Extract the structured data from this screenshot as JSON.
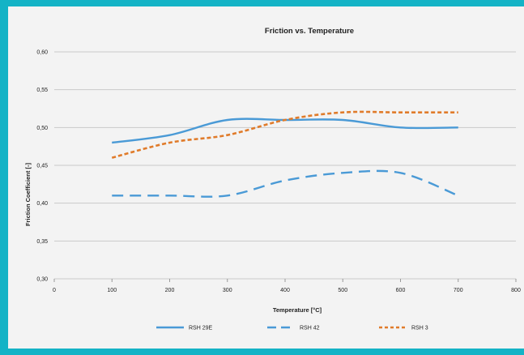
{
  "chart_data": {
    "type": "line",
    "title": "Friction vs. Temperature",
    "xlabel": "Temperature [°C]",
    "ylabel": "Friction Coefficient [-]",
    "xlim": [
      0,
      800
    ],
    "ylim": [
      0.3,
      0.6
    ],
    "x_ticks": [
      "0",
      "100",
      "200",
      "300",
      "400",
      "500",
      "600",
      "700",
      "800"
    ],
    "y_ticks": [
      "0,30",
      "0,35",
      "0,40",
      "0,45",
      "0,50",
      "0,55",
      "0,60"
    ],
    "grid": "horizontal",
    "legend_position": "bottom",
    "series": [
      {
        "name": "RSH 29E",
        "color": "#4a9ad6",
        "style": "solid",
        "x": [
          100,
          200,
          300,
          400,
          500,
          600,
          700
        ],
        "values": [
          0.48,
          0.49,
          0.51,
          0.51,
          0.51,
          0.5,
          0.5
        ]
      },
      {
        "name": "RSH 42",
        "color": "#4a9ad6",
        "style": "long-dash",
        "x": [
          100,
          200,
          300,
          400,
          500,
          600,
          700
        ],
        "values": [
          0.41,
          0.41,
          0.41,
          0.43,
          0.44,
          0.44,
          0.41
        ]
      },
      {
        "name": "RSH 3",
        "color": "#e07b2a",
        "style": "short-dash",
        "x": [
          100,
          200,
          300,
          400,
          500,
          600,
          700
        ],
        "values": [
          0.46,
          0.48,
          0.49,
          0.51,
          0.52,
          0.52,
          0.52
        ]
      }
    ]
  }
}
